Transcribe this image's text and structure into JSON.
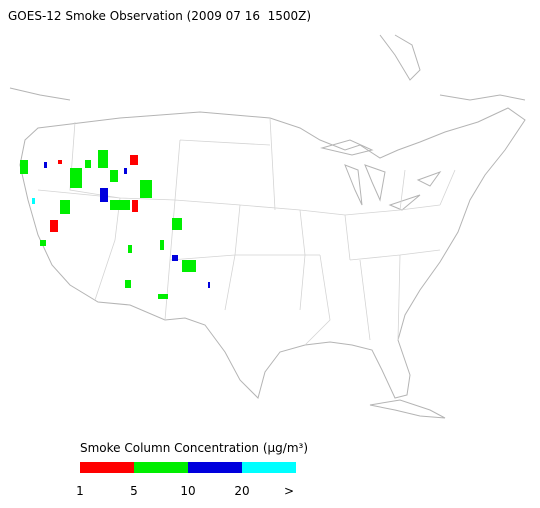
{
  "title": "GOES-12 Smoke Observation (2009 07 16  1500Z)",
  "legend": {
    "title": "Smoke Column Concentration (µg/m³)",
    "colors": [
      "#ff0000",
      "#00ee00",
      "#0000dd",
      "#00ffff"
    ],
    "labels": [
      "1",
      "5",
      "10",
      "20",
      ">"
    ]
  }
}
